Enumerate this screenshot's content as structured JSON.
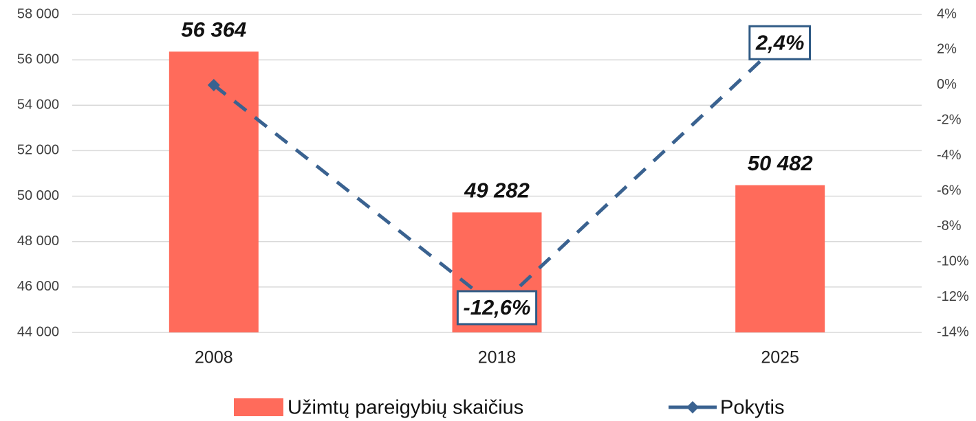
{
  "chart_data": {
    "type": "bar_line",
    "categories": [
      "2008",
      "2018",
      "2025"
    ],
    "series": [
      {
        "name": "Užimtų pareigybių skaičius",
        "type": "bar",
        "color": "#ff6b5b",
        "values": [
          56364,
          49282,
          50482
        ],
        "value_labels": [
          "56 364",
          "49 282",
          "50 482"
        ]
      },
      {
        "name": "Pokytis",
        "type": "line",
        "axis": "y2",
        "color": "#3a6290",
        "values": [
          0,
          -12.6,
          2.4
        ],
        "value_labels": [
          null,
          "-12,6%",
          "2,4%"
        ]
      }
    ],
    "ylim": [
      44000,
      58000
    ],
    "yticks": [
      {
        "value": 44000,
        "label": "44 000"
      },
      {
        "value": 46000,
        "label": "46 000"
      },
      {
        "value": 48000,
        "label": "48 000"
      },
      {
        "value": 50000,
        "label": "50 000"
      },
      {
        "value": 52000,
        "label": "52 000"
      },
      {
        "value": 54000,
        "label": "54 000"
      },
      {
        "value": 56000,
        "label": "56 000"
      },
      {
        "value": 58000,
        "label": "58 000"
      }
    ],
    "y2lim": [
      -14,
      4
    ],
    "y2ticks": [
      {
        "value": -14,
        "label": "-14%"
      },
      {
        "value": -12,
        "label": "-12%"
      },
      {
        "value": -10,
        "label": "-10%"
      },
      {
        "value": -8,
        "label": "-8%"
      },
      {
        "value": -6,
        "label": "-6%"
      },
      {
        "value": -4,
        "label": "-4%"
      },
      {
        "value": -2,
        "label": "-2%"
      },
      {
        "value": 0,
        "label": "0%"
      },
      {
        "value": 2,
        "label": "2%"
      },
      {
        "value": 4,
        "label": "4%"
      }
    ],
    "grid": true
  }
}
